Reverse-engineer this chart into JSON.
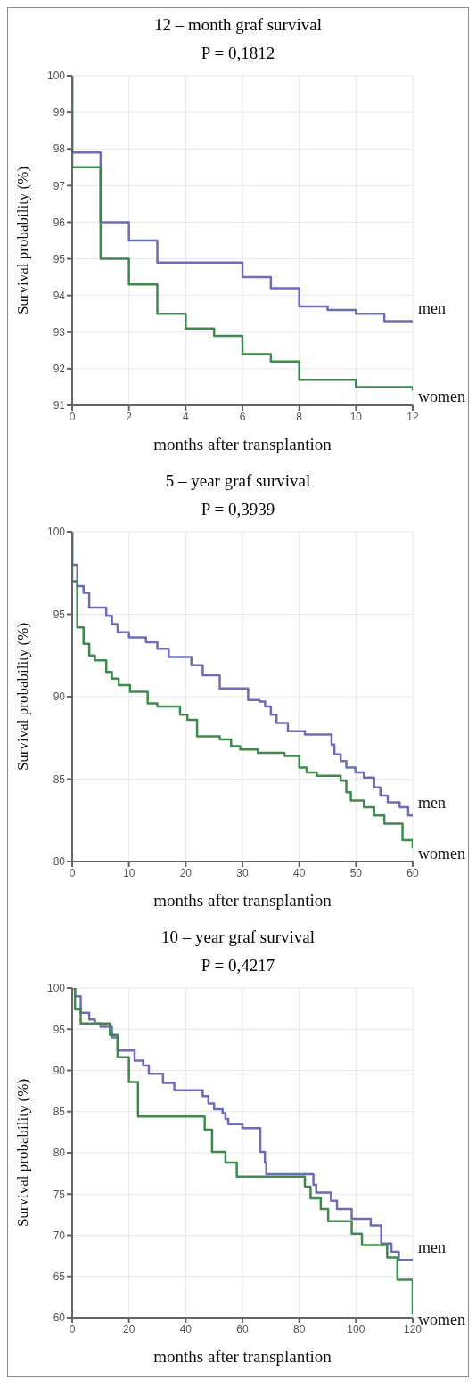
{
  "chart_data": [
    {
      "type": "step",
      "title": "12 – month graf survival",
      "annotations": [
        "P = 0,1812"
      ],
      "xlabel": "months after transplantion",
      "ylabel": "Survival probability (%)",
      "xlim": [
        0,
        12
      ],
      "xticks": [
        0,
        2,
        4,
        6,
        8,
        10,
        12
      ],
      "ylim": [
        91,
        100
      ],
      "yticks": [
        91,
        92,
        93,
        94,
        95,
        96,
        97,
        98,
        99,
        100
      ],
      "grid": true,
      "series": [
        {
          "name": "men",
          "color": "#6c6cb8",
          "x": [
            0,
            0,
            1,
            2,
            3,
            6,
            7,
            8,
            9,
            10,
            11,
            12
          ],
          "values": [
            100,
            97.9,
            96.0,
            95.5,
            94.9,
            94.5,
            94.2,
            93.7,
            93.6,
            93.5,
            93.3,
            93.3
          ]
        },
        {
          "name": "women",
          "color": "#3d8b4c",
          "x": [
            0,
            0,
            1,
            2,
            3,
            4,
            5,
            6,
            7,
            8,
            10,
            12
          ],
          "values": [
            100,
            97.5,
            95.0,
            94.3,
            93.5,
            93.1,
            92.9,
            92.4,
            92.2,
            91.7,
            91.5,
            91.4
          ]
        }
      ]
    },
    {
      "type": "step",
      "title": "5 – year graf survival",
      "annotations": [
        "P = 0,3939"
      ],
      "xlabel": "months after transplantion",
      "ylabel": "Survival probability (%)",
      "xlim": [
        0,
        60
      ],
      "xticks": [
        0,
        10,
        20,
        30,
        40,
        50,
        60
      ],
      "ylim": [
        80,
        100
      ],
      "yticks": [
        80,
        85,
        90,
        95,
        100
      ],
      "grid": true,
      "series": [
        {
          "name": "men",
          "color": "#6c6cb8",
          "x": [
            0,
            0,
            0.9,
            2,
            3,
            6,
            7,
            8,
            10,
            13,
            15,
            17,
            21,
            23,
            26,
            31,
            33,
            34,
            35,
            36,
            38,
            41,
            45.7,
            46.2,
            47.3,
            48.3,
            49.9,
            51.4,
            53.2,
            54.3,
            55.6,
            57.7,
            59.2,
            60
          ],
          "values": [
            100,
            98.0,
            96.7,
            96.3,
            95.4,
            94.9,
            94.4,
            93.9,
            93.6,
            93.3,
            92.9,
            92.4,
            91.9,
            91.3,
            90.5,
            89.8,
            89.7,
            89.4,
            88.9,
            88.4,
            87.9,
            87.7,
            87.1,
            86.5,
            86.1,
            85.7,
            85.4,
            85.1,
            84.5,
            84.0,
            83.6,
            83.3,
            82.8,
            82.8
          ]
        },
        {
          "name": "women",
          "color": "#3d8b4c",
          "x": [
            0,
            0,
            0.9,
            2,
            3,
            4,
            6,
            7,
            8.2,
            10.2,
            13.3,
            15,
            19,
            20.3,
            22,
            26,
            28,
            29.6,
            32.7,
            37.4,
            40,
            41.3,
            43.1,
            47.3,
            48.3,
            49.1,
            51.4,
            53.2,
            55,
            58.2,
            60
          ],
          "values": [
            100,
            97.0,
            94.2,
            93.2,
            92.5,
            92.2,
            91.5,
            91.1,
            90.7,
            90.3,
            89.6,
            89.4,
            88.9,
            88.6,
            87.6,
            87.4,
            87.0,
            86.8,
            86.6,
            86.4,
            85.7,
            85.4,
            85.2,
            84.9,
            84.2,
            83.7,
            83.3,
            82.8,
            82.3,
            81.3,
            80.8
          ]
        }
      ]
    },
    {
      "type": "step",
      "title": "10 – year graf survival",
      "annotations": [
        "P = 0,4217"
      ],
      "xlabel": "months after transplantion",
      "ylabel": "Survival probability (%)",
      "xlim": [
        0,
        120
      ],
      "xticks": [
        0,
        20,
        40,
        60,
        80,
        100,
        120
      ],
      "ylim": [
        60,
        100
      ],
      "yticks": [
        60,
        65,
        70,
        75,
        80,
        85,
        90,
        95,
        100
      ],
      "grid": true,
      "series": [
        {
          "name": "men",
          "color": "#6c6cb8",
          "x": [
            0,
            1,
            3,
            6,
            8,
            10,
            14,
            16,
            22,
            25,
            27,
            32,
            36,
            46,
            48,
            50,
            53,
            54,
            55,
            60,
            66.3,
            67.9,
            68.4,
            85,
            86,
            91.2,
            93.3,
            98.5,
            105.2,
            108.9,
            112.5,
            115.1,
            120
          ],
          "values": [
            100,
            99.0,
            97.0,
            96.2,
            95.7,
            95.3,
            94.0,
            92.4,
            91.2,
            90.6,
            89.6,
            88.5,
            87.6,
            86.9,
            86.0,
            85.3,
            84.8,
            84.1,
            83.5,
            83.0,
            80.1,
            78.8,
            77.4,
            76.1,
            75.2,
            74.2,
            73.2,
            72.0,
            71.2,
            69.0,
            68.0,
            67.0,
            67.0
          ]
        },
        {
          "name": "women",
          "color": "#3d8b4c",
          "x": [
            0,
            1,
            3,
            13.3,
            16,
            20,
            23.2,
            46.7,
            49.3,
            54,
            58,
            82,
            84,
            87.6,
            90.2,
            98.5,
            102.1,
            111,
            114.6,
            120
          ],
          "values": [
            100,
            97.4,
            95.7,
            94.3,
            91.6,
            88.6,
            84.4,
            82.8,
            80.1,
            78.8,
            77.1,
            75.9,
            74.5,
            73.2,
            71.7,
            70.2,
            68.8,
            67.3,
            64.6,
            60.4
          ]
        }
      ]
    }
  ]
}
